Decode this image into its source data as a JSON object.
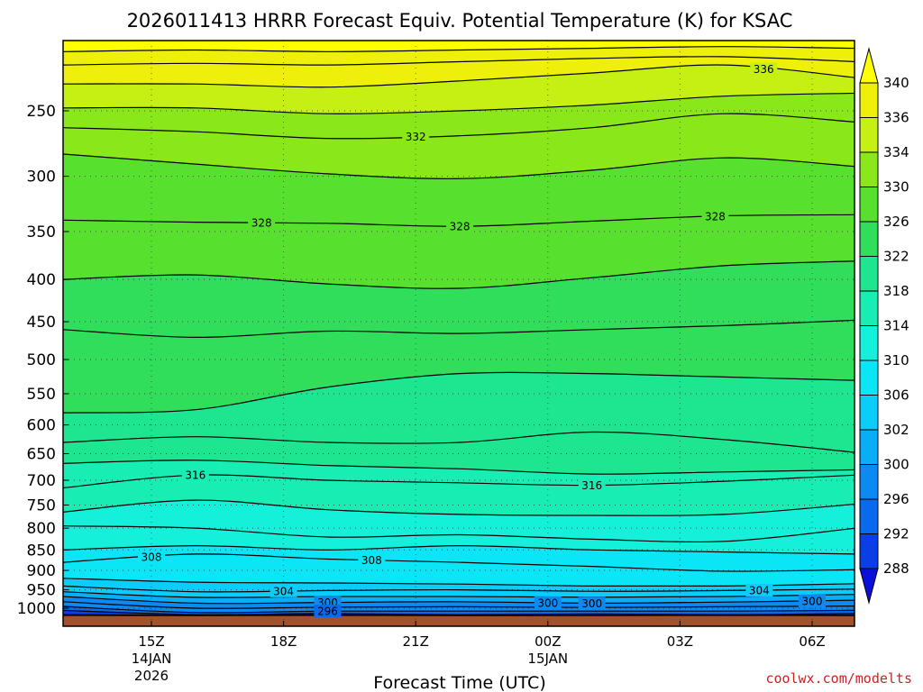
{
  "chart_data": {
    "type": "heatmap",
    "title": "2026011413 HRRR Forecast Equiv. Potential Temperature (K) for KSAC",
    "xlabel": "Forecast Time (UTC)",
    "ylabel": "",
    "credit": "coolwx.com/modelts",
    "y_scale": "log-pressure (inverted)",
    "ylim": [
      1025,
      200
    ],
    "y_ticks": [
      250,
      300,
      350,
      400,
      450,
      500,
      550,
      600,
      650,
      700,
      750,
      800,
      850,
      900,
      950,
      1000
    ],
    "xlim": [
      13,
      31
    ],
    "x_ticks": [
      {
        "hour": 15,
        "label": "15Z",
        "date": "14JAN",
        "year": "2026"
      },
      {
        "hour": 18,
        "label": "18Z",
        "date": "",
        "year": ""
      },
      {
        "hour": 21,
        "label": "21Z",
        "date": "",
        "year": ""
      },
      {
        "hour": 24,
        "label": "00Z",
        "date": "15JAN",
        "year": ""
      },
      {
        "hour": 27,
        "label": "03Z",
        "date": "",
        "year": ""
      },
      {
        "hour": 30,
        "label": "06Z",
        "date": "",
        "year": ""
      }
    ],
    "grid": true,
    "colorbar": {
      "levels": [
        288,
        292,
        296,
        300,
        302,
        306,
        310,
        314,
        318,
        322,
        326,
        330,
        334,
        336,
        340
      ],
      "colors": [
        "#0a10d8",
        "#0a3ee6",
        "#0a6aee",
        "#0a8af2",
        "#0aaef6",
        "#0acdfa",
        "#0ae6f6",
        "#14f0da",
        "#18eeb4",
        "#1ee690",
        "#30de5c",
        "#58e02e",
        "#8ae81a",
        "#c6f014",
        "#eef00c",
        "#ffff00"
      ],
      "extend": "both"
    },
    "contour_interval": 2,
    "contours": [
      {
        "level": 288,
        "values": [
          1018,
          1020,
          1018,
          1020,
          1020,
          1018,
          1020
        ]
      },
      {
        "level": 292,
        "values": [
          1006,
          1018,
          1015,
          1018,
          1016,
          1018,
          1015
        ]
      },
      {
        "level": 296,
        "values": [
          995,
          1012,
          1008,
          1008,
          1008,
          1008,
          1006
        ]
      },
      {
        "level": 298,
        "values": [
          982,
          1000,
          997,
          996,
          998,
          996,
          994
        ]
      },
      {
        "level": 300,
        "values": [
          968,
          986,
          984,
          982,
          986,
          983,
          978
        ]
      },
      {
        "level": 302,
        "values": [
          955,
          970,
          968,
          968,
          970,
          968,
          962
        ]
      },
      {
        "level": 304,
        "values": [
          940,
          955,
          952,
          950,
          954,
          952,
          948
        ]
      },
      {
        "level": 306,
        "values": [
          920,
          930,
          932,
          935,
          940,
          940,
          934
        ]
      },
      {
        "level": 308,
        "values": [
          880,
          860,
          872,
          880,
          890,
          902,
          898
        ]
      },
      {
        "level": 310,
        "values": [
          850,
          840,
          850,
          840,
          850,
          855,
          860
        ]
      },
      {
        "level": 312,
        "values": [
          795,
          800,
          820,
          815,
          825,
          830,
          800
        ]
      },
      {
        "level": 314,
        "values": [
          765,
          740,
          760,
          770,
          772,
          770,
          748
        ]
      },
      {
        "level": 316,
        "values": [
          715,
          690,
          700,
          705,
          710,
          702,
          690
        ]
      },
      {
        "level": 318,
        "values": [
          668,
          662,
          672,
          678,
          688,
          684,
          680
        ]
      },
      {
        "level": 320,
        "values": [
          630,
          620,
          630,
          630,
          612,
          625,
          648
        ]
      },
      {
        "level": 322,
        "values": [
          580,
          575,
          540,
          520,
          520,
          525,
          530
        ]
      },
      {
        "level": 324,
        "values": [
          460,
          470,
          462,
          465,
          460,
          455,
          448
        ]
      },
      {
        "level": 326,
        "values": [
          400,
          395,
          405,
          410,
          398,
          385,
          380
        ]
      },
      {
        "level": 328,
        "values": [
          339,
          341,
          342,
          345,
          340,
          335,
          334
        ]
      },
      {
        "level": 330,
        "values": [
          282,
          290,
          298,
          302,
          295,
          285,
          292
        ]
      },
      {
        "level": 332,
        "values": [
          262,
          265,
          270,
          268,
          262,
          252,
          258
        ]
      },
      {
        "level": 334,
        "values": [
          248,
          248,
          252,
          250,
          246,
          240,
          238
        ]
      },
      {
        "level": 336,
        "values": [
          232,
          232,
          234,
          230,
          225,
          220,
          228
        ]
      },
      {
        "level": 338,
        "values": [
          220,
          219,
          220,
          218,
          216,
          215,
          218
        ]
      },
      {
        "level": 340,
        "values": [
          212,
          211,
          212,
          211,
          210,
          209,
          210
        ]
      }
    ],
    "contour_hours": [
      13,
      16,
      19,
      22,
      25,
      28,
      31
    ],
    "contour_labels": [
      {
        "level": 336,
        "hour": 28.9
      },
      {
        "level": 332,
        "hour": 21.0
      },
      {
        "level": 328,
        "hour": 17.5
      },
      {
        "level": 328,
        "hour": 22.0
      },
      {
        "level": 328,
        "hour": 27.8
      },
      {
        "level": 316,
        "hour": 16.0
      },
      {
        "level": 316,
        "hour": 25.0
      },
      {
        "level": 308,
        "hour": 15.0
      },
      {
        "level": 308,
        "hour": 20.0
      },
      {
        "level": 304,
        "hour": 18.0
      },
      {
        "level": 304,
        "hour": 28.8
      },
      {
        "level": 300,
        "hour": 19.0
      },
      {
        "level": 300,
        "hour": 24.0
      },
      {
        "level": 300,
        "hour": 25.0
      },
      {
        "level": 300,
        "hour": 30.0
      },
      {
        "level": 296,
        "hour": 19.0
      }
    ],
    "ground_color": "#a0522d"
  }
}
